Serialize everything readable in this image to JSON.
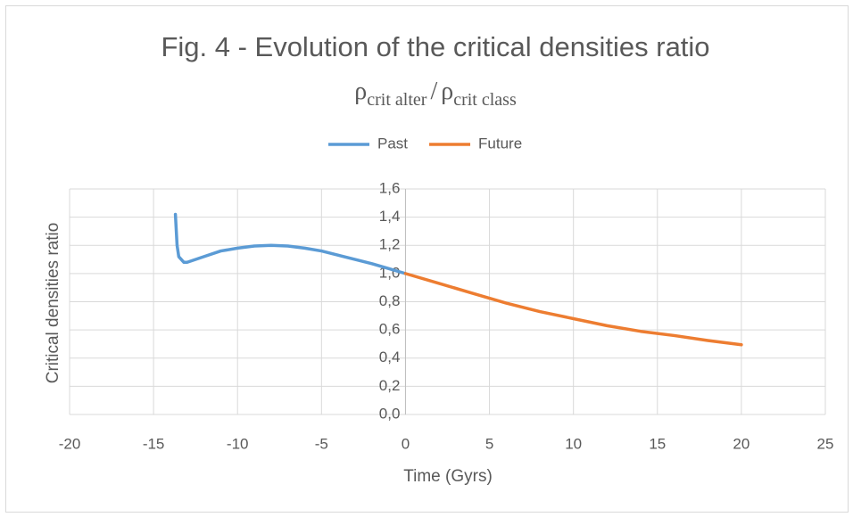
{
  "chart_data": {
    "type": "line",
    "title": "Fig. 4 - Evolution of the critical densities ratio",
    "subtitle": {
      "rho1": "ρ",
      "sub1": "crit alter",
      "slash": "/",
      "rho2": "ρ",
      "sub2": "crit class"
    },
    "xlabel": "Time (Gyrs)",
    "ylabel": "Critical densities ratio",
    "xlim": [
      -20,
      25
    ],
    "xticks": [
      -20,
      -15,
      -10,
      -5,
      0,
      5,
      10,
      15,
      20,
      25
    ],
    "ylim": [
      0,
      1.6
    ],
    "yticks": [
      {
        "value": 0,
        "label": "0,0"
      },
      {
        "value": 0.2,
        "label": "0,2"
      },
      {
        "value": 0.4,
        "label": "0,4"
      },
      {
        "value": 0.6,
        "label": "0,6"
      },
      {
        "value": 0.8,
        "label": "0,8"
      },
      {
        "value": 1.0,
        "label": "1,0"
      },
      {
        "value": 1.2,
        "label": "1,2"
      },
      {
        "value": 1.4,
        "label": "1,4"
      },
      {
        "value": 1.6,
        "label": "1,6"
      }
    ],
    "grid": true,
    "legend": "top",
    "series": [
      {
        "name": "Past",
        "color": "#5b9bd5",
        "x": [
          -13.7,
          -13.6,
          -13.5,
          -13.2,
          -13,
          -12,
          -11,
          -10,
          -9,
          -8,
          -7,
          -6,
          -5,
          -4,
          -3,
          -2,
          -1,
          0
        ],
        "values": [
          1.42,
          1.2,
          1.12,
          1.08,
          1.08,
          1.12,
          1.16,
          1.18,
          1.195,
          1.2,
          1.195,
          1.18,
          1.16,
          1.13,
          1.1,
          1.07,
          1.035,
          1.0
        ]
      },
      {
        "name": "Future",
        "color": "#ed7d31",
        "x": [
          0,
          2,
          4,
          5,
          6,
          8,
          10,
          12,
          14,
          16,
          18,
          20
        ],
        "values": [
          1.0,
          0.93,
          0.86,
          0.825,
          0.79,
          0.73,
          0.68,
          0.63,
          0.59,
          0.56,
          0.525,
          0.495
        ]
      }
    ]
  }
}
